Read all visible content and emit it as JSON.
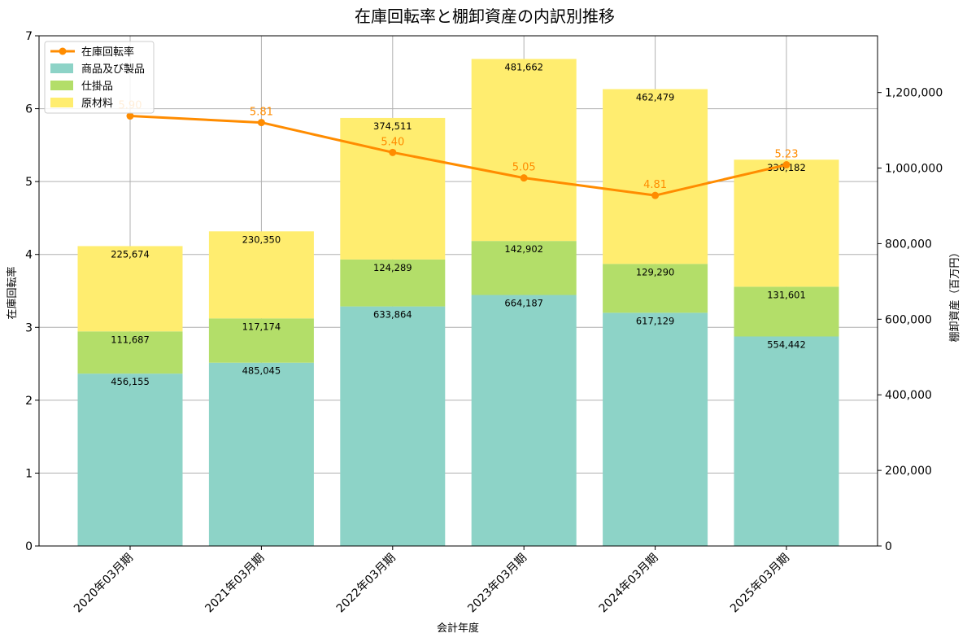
{
  "chart_data": {
    "type": "bar",
    "title": "在庫回転率と棚卸資産の内訳別推移",
    "xlabel": "会計年度",
    "ylabel_left": "在庫回転率",
    "ylabel_right": "棚卸資産（百万円）",
    "categories": [
      "2020年03月期",
      "2021年03月期",
      "2022年03月期",
      "2023年03月期",
      "2024年03月期",
      "2025年03月期"
    ],
    "ylim_left": [
      0,
      7
    ],
    "ylim_right": [
      0,
      1350000
    ],
    "left_ticks": [
      "0",
      "1",
      "2",
      "3",
      "4",
      "5",
      "6",
      "7"
    ],
    "right_ticks": [
      "0",
      "200,000",
      "400,000",
      "600,000",
      "800,000",
      "1,000,000",
      "1,200,000"
    ],
    "grid": true,
    "legend_position": "top-left",
    "series": [
      {
        "name": "商品及び製品",
        "kind": "bar",
        "axis": "right",
        "color": "#8dd3c7",
        "values": [
          456155,
          485045,
          633864,
          664187,
          617129,
          554442
        ],
        "labels": [
          "456,155",
          "485,045",
          "633,864",
          "664,187",
          "617,129",
          "554,442"
        ]
      },
      {
        "name": "仕掛品",
        "kind": "bar",
        "axis": "right",
        "color": "#b3de69",
        "values": [
          111687,
          117174,
          124289,
          142902,
          129290,
          131601
        ],
        "labels": [
          "111,687",
          "117,174",
          "124,289",
          "142,902",
          "129,290",
          "131,601"
        ]
      },
      {
        "name": "原材料",
        "kind": "bar",
        "axis": "right",
        "color": "#ffed6f",
        "values": [
          225674,
          230350,
          374511,
          481662,
          462479,
          336182
        ],
        "labels": [
          "225,674",
          "230,350",
          "374,511",
          "481,662",
          "462,479",
          "336,182"
        ]
      },
      {
        "name": "在庫回転率",
        "kind": "line",
        "axis": "left",
        "color": "#ff8c00",
        "values": [
          5.9,
          5.81,
          5.4,
          5.05,
          4.81,
          5.23
        ],
        "labels": [
          "5.90",
          "5.81",
          "5.40",
          "5.05",
          "4.81",
          "5.23"
        ]
      }
    ]
  }
}
